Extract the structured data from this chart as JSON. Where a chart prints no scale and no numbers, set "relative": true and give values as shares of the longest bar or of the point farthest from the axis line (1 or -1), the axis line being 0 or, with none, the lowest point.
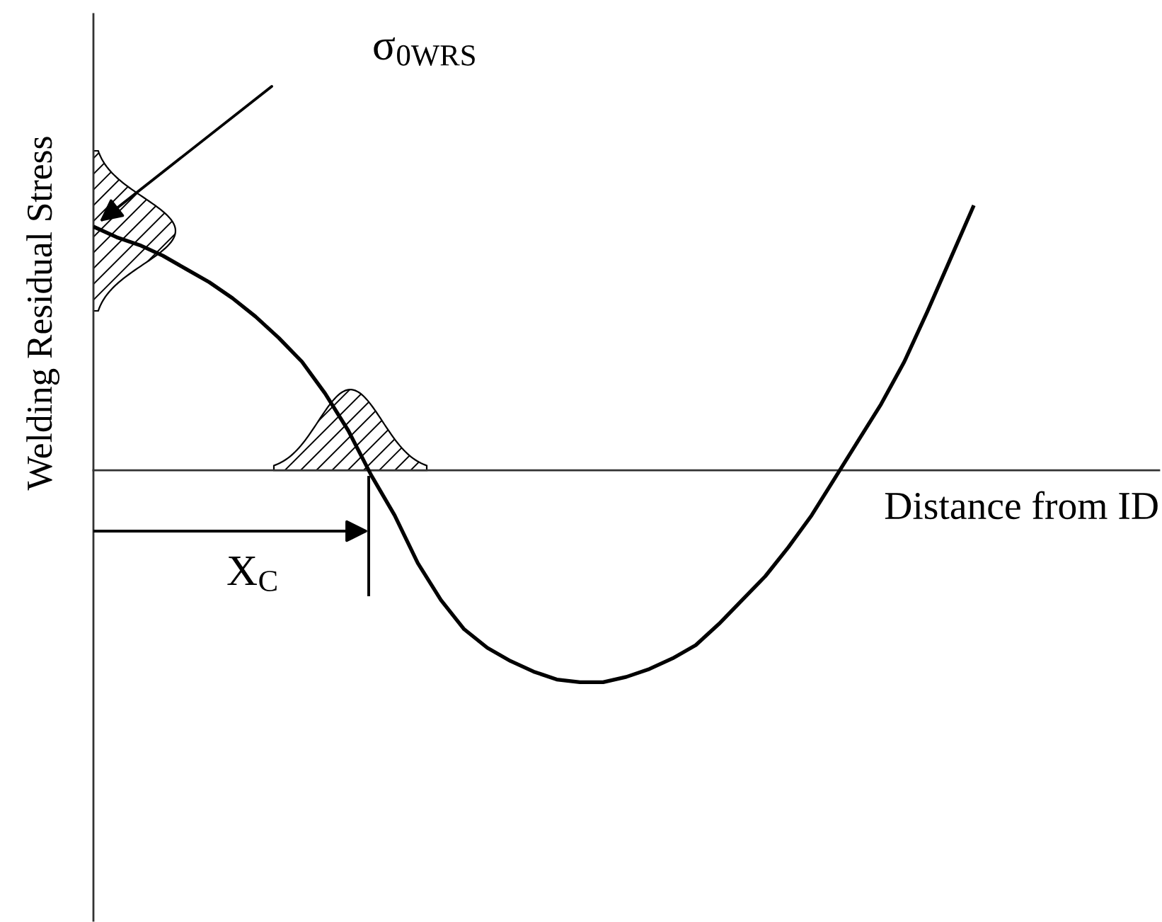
{
  "chart_data": {
    "type": "line",
    "relative": true,
    "line_style": "solid",
    "xlabel": "Distance from ID",
    "ylabel": "Welding Residual Stress",
    "annotations": [
      "σ$_{0WRS}$",
      "X$_{C}$"
    ],
    "categories": [
      null,
      null,
      null,
      null,
      null,
      null,
      null,
      null,
      null,
      null,
      null,
      null,
      null,
      null,
      null,
      null,
      null,
      null,
      null,
      null,
      null,
      null,
      null,
      null,
      null,
      null,
      null,
      null,
      null,
      null,
      null,
      null,
      null,
      null,
      null,
      null,
      null,
      null,
      null,
      null,
      null,
      null,
      null,
      null,
      null,
      null,
      null
    ],
    "series": [
      {
        "color": "#000000",
        "values": [
          0.92,
          0.88,
          0.85,
          0.81,
          0.76,
          0.71,
          0.65,
          0.58,
          0.5,
          0.41,
          0.29,
          0.15,
          -0.02,
          -0.17,
          -0.35,
          -0.49,
          -0.6,
          -0.67,
          -0.72,
          -0.76,
          -0.79,
          -0.8,
          -0.8,
          -0.78,
          -0.75,
          -0.71,
          -0.66,
          -0.58,
          -0.49,
          -0.4,
          -0.29,
          -0.17,
          -0.03,
          0.11,
          0.25,
          0.41,
          0.6,
          0.8,
          1.0,
          null,
          null,
          null,
          null,
          null,
          null,
          null,
          null
        ]
      }
    ]
  }
}
